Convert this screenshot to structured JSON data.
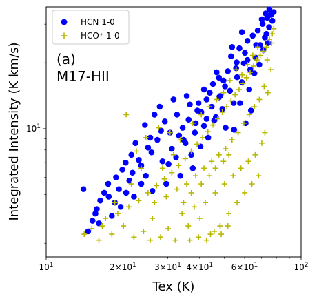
{
  "chart_data": {
    "type": "scatter",
    "title": "",
    "xlabel": "Tex (K)",
    "ylabel": "Integrated Intensity (K km/s)",
    "xscale": "log",
    "yscale": "log",
    "xlim": [
      10,
      100
    ],
    "ylim": [
      2.6,
      36
    ],
    "grid": false,
    "legend_position": "top-left",
    "x_ticks": [
      {
        "value": 10,
        "base": "10",
        "exp": "1"
      },
      {
        "value": 20,
        "base": "2×10",
        "exp": "1"
      },
      {
        "value": 30,
        "base": "3×10",
        "exp": "1"
      },
      {
        "value": 40,
        "base": "4×10",
        "exp": "1"
      },
      {
        "value": 60,
        "base": "6×10",
        "exp": "1"
      },
      {
        "value": 100,
        "base": "10",
        "exp": "2"
      }
    ],
    "y_ticks": [
      {
        "value": 10,
        "base": "10",
        "exp": "1"
      }
    ],
    "annotations": [
      "(a)",
      "M17-HII"
    ],
    "series": [
      {
        "name": "HCN 1-0",
        "marker": "circle",
        "color": "#0000ff",
        "points": [
          [
            14,
            5.3
          ],
          [
            14.6,
            3.4
          ],
          [
            15.2,
            3.8
          ],
          [
            15.8,
            4.3
          ],
          [
            16.3,
            4.7
          ],
          [
            16.9,
            5.1
          ],
          [
            17.5,
            5.6
          ],
          [
            18.1,
            4.0
          ],
          [
            18.8,
            6.0
          ],
          [
            19.3,
            5.3
          ],
          [
            19.9,
            6.5
          ],
          [
            20.5,
            7.0
          ],
          [
            21.2,
            5.8
          ],
          [
            21.8,
            6.3
          ],
          [
            22.4,
            8.6
          ],
          [
            23.1,
            7.2
          ],
          [
            23.6,
            6.8
          ],
          [
            24.4,
            10.4
          ],
          [
            25.1,
            8.2
          ],
          [
            25.9,
            7.8
          ],
          [
            26.6,
            11.6
          ],
          [
            27.3,
            8.9
          ],
          [
            28.2,
            9.8
          ],
          [
            29.2,
            10.8
          ],
          [
            30.2,
            6.9
          ],
          [
            31.1,
            8.1
          ],
          [
            32.3,
            7.4
          ],
          [
            33.2,
            9.3
          ],
          [
            34.3,
            10.1
          ],
          [
            35.2,
            8.6
          ],
          [
            36.2,
            11.0
          ],
          [
            37.1,
            7.6
          ],
          [
            38.3,
            9.6
          ],
          [
            39.2,
            12.1
          ],
          [
            40.3,
            8.3
          ],
          [
            41.6,
            10.3
          ],
          [
            42.6,
            13.6
          ],
          [
            43.8,
            14.6
          ],
          [
            45.1,
            16.0
          ],
          [
            46.3,
            11.3
          ],
          [
            47.6,
            17.1
          ],
          [
            49.1,
            12.3
          ],
          [
            50.3,
            15.6
          ],
          [
            51.6,
            18.3
          ],
          [
            53.1,
            21.4
          ],
          [
            54.4,
            13.1
          ],
          [
            55.9,
            20.1
          ],
          [
            57.3,
            23.3
          ],
          [
            58.6,
            16.3
          ],
          [
            60.2,
            22.2
          ],
          [
            61.6,
            25.2
          ],
          [
            63.2,
            18.6
          ],
          [
            64.6,
            26.6
          ],
          [
            66.3,
            21.1
          ],
          [
            67.6,
            28.1
          ],
          [
            69.1,
            24.1
          ],
          [
            70.6,
            30.1
          ],
          [
            72.1,
            26.1
          ],
          [
            73.6,
            32.1
          ],
          [
            74.9,
            29.1
          ],
          [
            76.1,
            33.1
          ],
          [
            77.1,
            31.1
          ],
          [
            56.1,
            17.2
          ],
          [
            48.1,
            14.1
          ],
          [
            43.2,
            9.1
          ],
          [
            37.6,
            6.6
          ],
          [
            33.6,
            6.1
          ],
          [
            29.6,
            5.6
          ],
          [
            26.1,
            5.2
          ],
          [
            22.1,
            4.9
          ],
          [
            18.6,
            4.6
          ],
          [
            16.1,
            3.7
          ],
          [
            27.9,
            12.6
          ],
          [
            31.6,
            13.6
          ],
          [
            36.6,
            12.9
          ],
          [
            40.6,
            11.9
          ],
          [
            45.6,
            10.9
          ],
          [
            52.6,
            14.9
          ],
          [
            59.6,
            19.9
          ],
          [
            65.6,
            17.9
          ],
          [
            71.1,
            22.9
          ],
          [
            62.6,
            15.1
          ],
          [
            35.6,
            14.1
          ],
          [
            41.6,
            15.1
          ],
          [
            46.6,
            18.1
          ],
          [
            53.6,
            23.6
          ],
          [
            58.6,
            27.6
          ],
          [
            24.6,
            6.1
          ],
          [
            20.6,
            5.1
          ],
          [
            38.6,
            10.6
          ],
          [
            44.6,
            12.6
          ],
          [
            50.6,
            10.1
          ],
          [
            57.6,
            13.1
          ],
          [
            68.6,
            19.6
          ],
          [
            74.1,
            24.6
          ],
          [
            78.1,
            34.1
          ],
          [
            75.1,
            35.1
          ],
          [
            72.6,
            33.6
          ],
          [
            70.1,
            31.6
          ],
          [
            30.6,
            9.6
          ],
          [
            32.6,
            11.6
          ],
          [
            34.6,
            8.9
          ],
          [
            39.6,
            13.1
          ],
          [
            42.6,
            11.1
          ],
          [
            47.6,
            13.9
          ],
          [
            49.6,
            16.6
          ],
          [
            55.6,
            18.9
          ],
          [
            61.6,
            20.6
          ],
          [
            66.6,
            24.1
          ],
          [
            73.1,
            27.1
          ],
          [
            28.6,
            7.1
          ],
          [
            25.6,
            9.1
          ],
          [
            23.6,
            5.6
          ],
          [
            21.6,
            7.6
          ],
          [
            19.6,
            4.4
          ],
          [
            17.6,
            4.9
          ],
          [
            15.6,
            4.1
          ],
          [
            63.6,
            12.1
          ],
          [
            60.6,
            10.6
          ],
          [
            54.6,
            9.9
          ]
        ]
      },
      {
        "name": "HCO⁺ 1-0",
        "marker": "plus",
        "color": "#b8b800",
        "points": [
          [
            14.1,
            3.3
          ],
          [
            15.1,
            3.5
          ],
          [
            16.1,
            3.1
          ],
          [
            17.1,
            3.9
          ],
          [
            18.1,
            3.3
          ],
          [
            19.1,
            4.1
          ],
          [
            20.1,
            3.6
          ],
          [
            20.6,
            11.6
          ],
          [
            21.1,
            4.4
          ],
          [
            22.1,
            3.2
          ],
          [
            23.1,
            4.7
          ],
          [
            24.1,
            3.4
          ],
          [
            25.1,
            5.1
          ],
          [
            26.1,
            3.9
          ],
          [
            27.1,
            5.5
          ],
          [
            28.1,
            3.2
          ],
          [
            29.1,
            5.9
          ],
          [
            30.1,
            3.5
          ],
          [
            31.1,
            6.3
          ],
          [
            32.1,
            3.1
          ],
          [
            33.1,
            6.8
          ],
          [
            34.1,
            4.1
          ],
          [
            35.1,
            7.3
          ],
          [
            36.1,
            3.6
          ],
          [
            37.1,
            7.9
          ],
          [
            38.1,
            4.4
          ],
          [
            39.1,
            8.5
          ],
          [
            40.1,
            3.9
          ],
          [
            41.1,
            9.1
          ],
          [
            42.1,
            4.6
          ],
          [
            43.1,
            9.7
          ],
          [
            44.1,
            3.3
          ],
          [
            45.1,
            10.4
          ],
          [
            46.1,
            5.1
          ],
          [
            47.1,
            11.1
          ],
          [
            48.1,
            3.6
          ],
          [
            49.1,
            11.9
          ],
          [
            50.1,
            5.6
          ],
          [
            51.1,
            12.6
          ],
          [
            52.1,
            4.1
          ],
          [
            53.1,
            13.4
          ],
          [
            54.1,
            6.1
          ],
          [
            55.1,
            14.3
          ],
          [
            56.1,
            4.6
          ],
          [
            57.1,
            15.1
          ],
          [
            58.1,
            6.6
          ],
          [
            59.1,
            16.1
          ],
          [
            60.1,
            5.1
          ],
          [
            61.1,
            17.1
          ],
          [
            62.1,
            7.1
          ],
          [
            63.1,
            18.1
          ],
          [
            64.1,
            5.6
          ],
          [
            65.1,
            19.3
          ],
          [
            66.1,
            7.6
          ],
          [
            67.1,
            20.6
          ],
          [
            68.1,
            6.1
          ],
          [
            69.1,
            21.6
          ],
          [
            70.1,
            8.6
          ],
          [
            71.1,
            22.6
          ],
          [
            72.1,
            9.6
          ],
          [
            73.1,
            23.6
          ],
          [
            74.1,
            14.6
          ],
          [
            75.1,
            25.6
          ],
          [
            76.1,
            18.6
          ],
          [
            77.1,
            27.1
          ],
          [
            78.1,
            28.6
          ],
          [
            36.6,
            3.1
          ],
          [
            39.6,
            3.2
          ],
          [
            42.6,
            3.1
          ],
          [
            45.6,
            3.4
          ],
          [
            48.6,
            3.3
          ],
          [
            51.6,
            3.6
          ],
          [
            26.6,
            4.6
          ],
          [
            29.6,
            4.9
          ],
          [
            32.6,
            5.3
          ],
          [
            35.6,
            5.6
          ],
          [
            38.6,
            6.1
          ],
          [
            41.6,
            6.6
          ],
          [
            44.6,
            7.1
          ],
          [
            47.6,
            7.6
          ],
          [
            50.6,
            8.1
          ],
          [
            53.6,
            8.9
          ],
          [
            56.6,
            9.6
          ],
          [
            59.6,
            10.6
          ],
          [
            62.6,
            11.6
          ],
          [
            65.6,
            12.6
          ],
          [
            68.6,
            13.6
          ],
          [
            71.6,
            15.6
          ],
          [
            22.6,
            7.9
          ],
          [
            24.6,
            9.1
          ],
          [
            27.6,
            10.1
          ],
          [
            30.6,
            9.6
          ],
          [
            33.6,
            8.9
          ],
          [
            37.6,
            10.6
          ],
          [
            40.6,
            11.6
          ],
          [
            43.6,
            12.6
          ],
          [
            46.6,
            13.6
          ],
          [
            49.6,
            14.6
          ],
          [
            52.6,
            16.6
          ],
          [
            55.6,
            18.6
          ],
          [
            58.6,
            17.6
          ],
          [
            61.6,
            19.6
          ],
          [
            64.6,
            21.6
          ],
          [
            67.6,
            23.6
          ],
          [
            73.6,
            20.6
          ],
          [
            76.6,
            24.6
          ],
          [
            16.6,
            3.6
          ],
          [
            18.6,
            4.6
          ],
          [
            21.6,
            5.6
          ],
          [
            23.6,
            6.6
          ],
          [
            25.6,
            3.1
          ],
          [
            28.6,
            6.6
          ],
          [
            31.6,
            7.6
          ],
          [
            34.6,
            4.6
          ],
          [
            37.1,
            5.1
          ],
          [
            40.6,
            5.6
          ],
          [
            43.6,
            6.1
          ],
          [
            46.1,
            6.6
          ],
          [
            49.6,
            7.1
          ],
          [
            52.1,
            7.6
          ]
        ]
      }
    ]
  }
}
